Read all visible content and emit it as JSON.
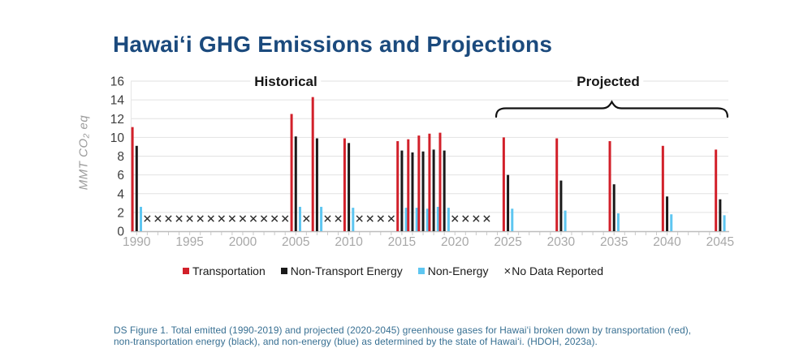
{
  "header": {
    "title": "Hawaiʻi GHG Emissions and Projections"
  },
  "chart_data": {
    "type": "bar",
    "title": "Hawaiʻi GHG Emissions and Projections",
    "xlabel": "",
    "ylabel": "MMT CO₂ eq",
    "ylim": [
      0,
      16
    ],
    "ytick_values": [
      0,
      2,
      4,
      6,
      8,
      10,
      12,
      14,
      16
    ],
    "xtick_values": [
      1990,
      1995,
      2000,
      2005,
      2010,
      2015,
      2020,
      2025,
      2030,
      2035,
      2040,
      2045
    ],
    "grid": true,
    "legend_position": "bottom",
    "period_labels": {
      "historical": "Historical",
      "projected": "Projected"
    },
    "projected_brace_year_span": [
      2024,
      2046
    ],
    "categories": [
      1990,
      2005,
      2007,
      2010,
      2015,
      2016,
      2017,
      2018,
      2019,
      2025,
      2030,
      2035,
      2040,
      2045
    ],
    "series": [
      {
        "name": "Transportation",
        "color": "#D2202A",
        "values": [
          11.1,
          12.5,
          14.3,
          9.9,
          9.6,
          9.8,
          10.2,
          10.4,
          10.5,
          10.0,
          9.9,
          9.6,
          9.1,
          8.7
        ]
      },
      {
        "name": "Non-Transport Energy",
        "color": "#1A1A1A",
        "values": [
          9.1,
          10.1,
          9.9,
          9.4,
          8.6,
          8.4,
          8.5,
          8.7,
          8.6,
          6.0,
          5.4,
          5.0,
          3.7,
          3.4
        ]
      },
      {
        "name": "Non-Energy",
        "color": "#5EC6F1",
        "values": [
          2.6,
          2.6,
          2.6,
          2.5,
          2.5,
          2.5,
          2.4,
          2.6,
          2.5,
          2.4,
          2.2,
          1.9,
          1.8,
          1.7
        ]
      }
    ],
    "no_data": {
      "label": "No Data Reported",
      "marker": "×",
      "value": 1,
      "years": [
        1991,
        1992,
        1993,
        1994,
        1995,
        1996,
        1997,
        1998,
        1999,
        2000,
        2001,
        2002,
        2003,
        2004,
        2006,
        2008,
        2009,
        2011,
        2012,
        2013,
        2014,
        2020,
        2021,
        2022,
        2023
      ]
    }
  },
  "legend": {
    "items": [
      {
        "label": "Transportation",
        "swatch": "square",
        "color": "#D2202A"
      },
      {
        "label": "Non-Transport Energy",
        "swatch": "square",
        "color": "#1A1A1A"
      },
      {
        "label": "Non-Energy",
        "swatch": "square",
        "color": "#5EC6F1"
      },
      {
        "label": "No Data Reported",
        "swatch": "x-mark",
        "symbol": "×"
      }
    ]
  },
  "caption": {
    "text": "DS Figure 1. Total emitted (1990-2019) and projected (2020-2045) greenhouse gases for Hawaiʻi broken down by transportation (red), non-transportation energy (black), and non-energy (blue) as determined by the state of Hawaiʻi. (HDOH, 2023a)."
  },
  "colors": {
    "title": "#1B4A7D",
    "caption": "#376F92",
    "transportation": "#D2202A",
    "non_transport_energy": "#1A1A1A",
    "non_energy": "#5EC6F1",
    "gridline": "#E2E2E2",
    "x_tick_label": "#A8A8A8",
    "y_tick_label": "#3D3D3D"
  }
}
